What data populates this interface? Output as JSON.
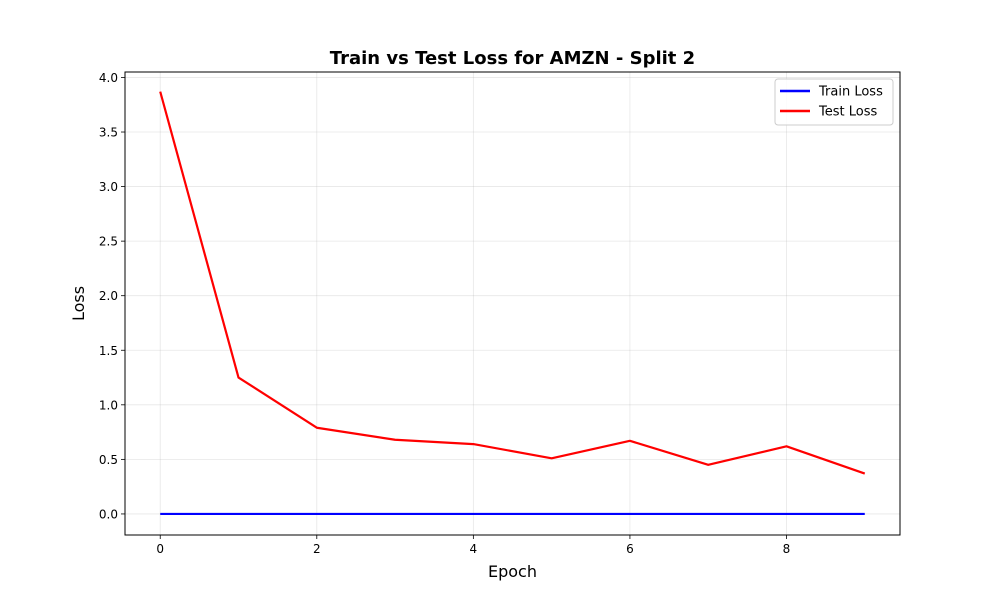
{
  "chart_data": {
    "type": "line",
    "title": "Train vs Test Loss for AMZN - Split 2",
    "xlabel": "Epoch",
    "ylabel": "Loss",
    "xlim": [
      -0.45,
      9.45
    ],
    "ylim": [
      -0.193,
      4.05
    ],
    "xticks": [
      0,
      2,
      4,
      6,
      8
    ],
    "xtick_labels": [
      "0",
      "2",
      "4",
      "6",
      "8"
    ],
    "yticks": [
      0.0,
      0.5,
      1.0,
      1.5,
      2.0,
      2.5,
      3.0,
      3.5,
      4.0
    ],
    "ytick_labels": [
      "0.0",
      "0.5",
      "1.0",
      "1.5",
      "2.0",
      "2.5",
      "3.0",
      "3.5",
      "4.0"
    ],
    "grid": true,
    "legend_position": "top-right",
    "x": [
      0,
      1,
      2,
      3,
      4,
      5,
      6,
      7,
      8,
      9
    ],
    "series": [
      {
        "name": "Train Loss",
        "color": "#0000ff",
        "values": [
          0.0,
          0.0,
          0.0,
          0.0,
          0.0,
          0.0,
          0.0,
          0.0,
          0.0,
          0.0
        ]
      },
      {
        "name": "Test Loss",
        "color": "#ff0000",
        "values": [
          3.87,
          1.25,
          0.79,
          0.68,
          0.64,
          0.51,
          0.67,
          0.45,
          0.62,
          0.37
        ]
      }
    ]
  }
}
